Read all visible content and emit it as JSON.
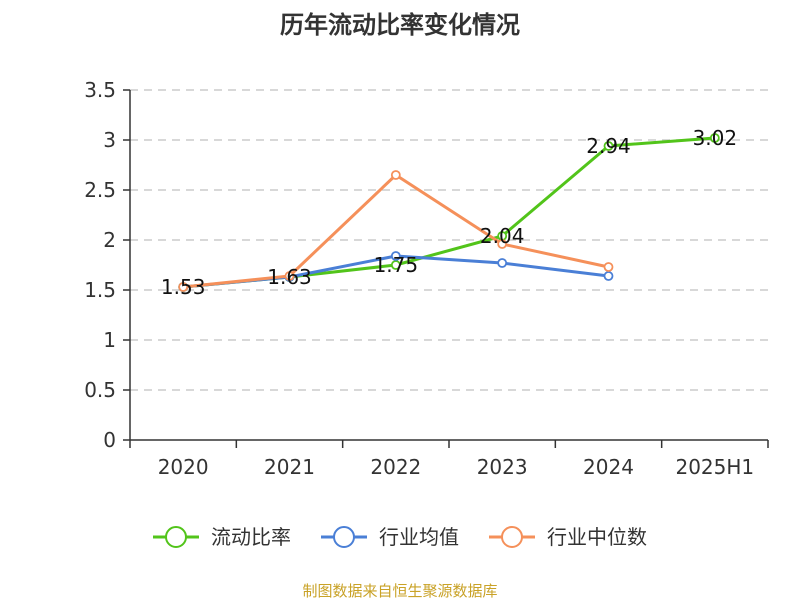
{
  "chart_data": {
    "type": "line",
    "title": "历年流动比率变化情况",
    "xlabel": "",
    "ylabel": "",
    "categories": [
      "2020",
      "2021",
      "2022",
      "2023",
      "2024",
      "2025H1"
    ],
    "ylim": [
      0,
      3.5
    ],
    "yticks": [
      0,
      0.5,
      1,
      1.5,
      2,
      2.5,
      3,
      3.5
    ],
    "ytick_labels": [
      "0",
      "0.5",
      "1",
      "1.5",
      "2",
      "2.5",
      "3",
      "3.5"
    ],
    "grid": true,
    "legend_position": "bottom",
    "series": [
      {
        "name": "流动比率",
        "color": "#52c41a",
        "values": [
          1.53,
          1.63,
          1.75,
          2.04,
          2.94,
          3.02
        ],
        "labels": [
          "1.53",
          "1.63",
          "1.75",
          "2.04",
          "2.94",
          "3.02"
        ]
      },
      {
        "name": "行业均值",
        "color": "#4a7fd6",
        "values": [
          1.53,
          1.63,
          1.84,
          1.77,
          1.64,
          null
        ]
      },
      {
        "name": "行业中位数",
        "color": "#f5905a",
        "values": [
          1.53,
          1.64,
          2.65,
          1.96,
          1.73,
          null
        ]
      }
    ]
  },
  "footer": {
    "source": "制图数据来自恒生聚源数据库"
  }
}
